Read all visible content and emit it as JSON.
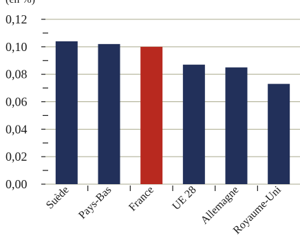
{
  "chart_data": {
    "type": "bar",
    "unit_label": "(en %)",
    "categories": [
      "Suède",
      "Pays-Bas",
      "France",
      "UE 28",
      "Allemagne",
      "Royaume-Uni"
    ],
    "values": [
      0.104,
      0.102,
      0.1,
      0.087,
      0.085,
      0.073
    ],
    "bar_colors": [
      "#22305a",
      "#22305a",
      "#b8291f",
      "#22305a",
      "#22305a",
      "#22305a"
    ],
    "ylim": [
      0,
      0.12
    ],
    "yticks": [
      "0,00",
      "0,02",
      "0,04",
      "0,06",
      "0,08",
      "0,10",
      "0,12"
    ],
    "grid": true,
    "grid_color": "#a9a98c"
  }
}
